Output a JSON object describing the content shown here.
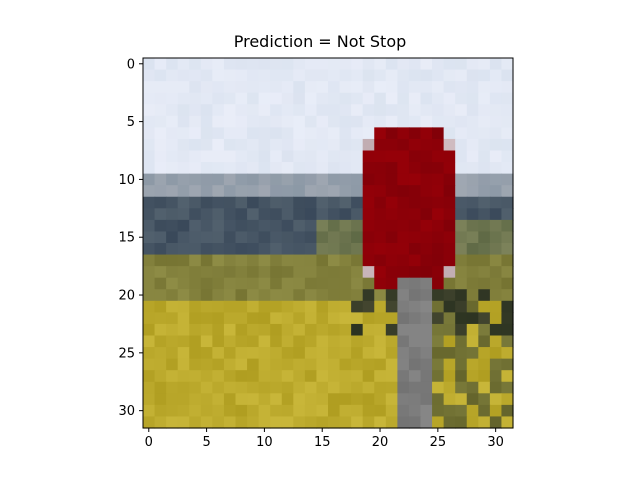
{
  "title": "Prediction = Not Stop",
  "image": {
    "grid_size": 32,
    "description_icon": "stop-sign-photo"
  },
  "axes": {
    "x_ticks": [
      "0",
      "5",
      "10",
      "15",
      "20",
      "25",
      "30"
    ],
    "y_ticks": [
      "0",
      "5",
      "10",
      "15",
      "20",
      "25",
      "30"
    ],
    "x_range": [
      -0.5,
      31.5
    ],
    "y_range": [
      -0.5,
      31.5
    ]
  },
  "colors": {
    "sky": "#e8ecf4",
    "stop_red": "#8c0008",
    "field_yellow": "#b8a830",
    "pole_gray": "#808080"
  }
}
